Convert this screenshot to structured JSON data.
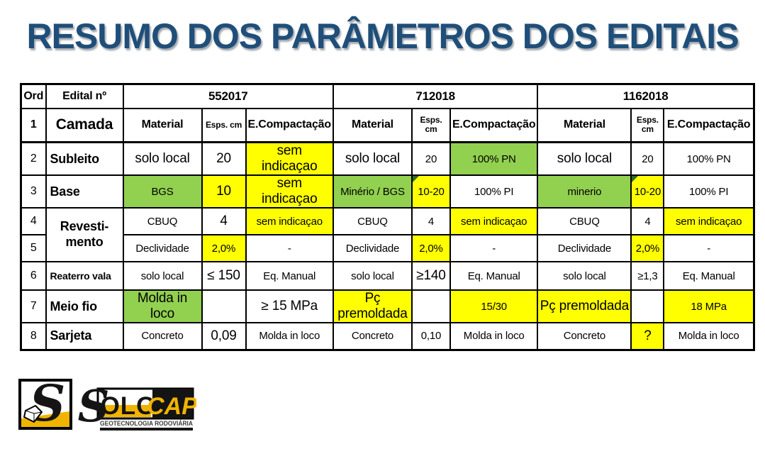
{
  "title": "RESUMO DOS PARÂMETROS DOS EDITAIS",
  "colors": {
    "title_blue": "#1F4E79",
    "highlight_yellow": "#FFFF00",
    "highlight_green": "#92D050",
    "corner_flag_green": "#2D6A2D",
    "logo_gold": "#F0B400"
  },
  "table": {
    "header": {
      "ord": "Ord",
      "edital": "Edital nº",
      "editais": [
        "552017",
        "712018",
        "1162018"
      ]
    },
    "subheader": {
      "num": "1",
      "camada": "Camada",
      "material": "Material",
      "esps": "Esps. cm",
      "compactacao": "E.Compactação"
    },
    "rows": [
      {
        "num": "2",
        "camada": "Subleito",
        "cells": [
          {
            "t": "solo local",
            "lg": true
          },
          {
            "t": "20",
            "lg": true
          },
          {
            "t": "sem indicaçao",
            "bg": "y",
            "lg": true
          },
          {
            "t": "solo local",
            "lg": true
          },
          {
            "t": "20"
          },
          {
            "t": "100% PN",
            "bg": "g"
          },
          {
            "t": "solo local",
            "lg": true
          },
          {
            "t": "20"
          },
          {
            "t": "100% PN"
          }
        ]
      },
      {
        "num": "3",
        "camada": "Base",
        "cells": [
          {
            "t": "BGS",
            "bg": "g"
          },
          {
            "t": "10",
            "bg": "y",
            "lg": true
          },
          {
            "t": "sem indicaçao",
            "bg": "y",
            "lg": true
          },
          {
            "t": "Minério / BGS",
            "bg": "g"
          },
          {
            "t": "10-20",
            "bg": "y",
            "corner": true
          },
          {
            "t": "100% PI"
          },
          {
            "t": "minerio",
            "bg": "g"
          },
          {
            "t": "10-20",
            "bg": "y",
            "corner": true
          },
          {
            "t": "100% PI"
          }
        ]
      },
      {
        "num": "4",
        "camada": "Revesti-\nmento",
        "camada_rowspan": 2,
        "camada_center": true,
        "cells": [
          {
            "t": "CBUQ"
          },
          {
            "t": "4",
            "lg": true
          },
          {
            "t": "sem indicaçao",
            "bg": "y"
          },
          {
            "t": "CBUQ"
          },
          {
            "t": "4"
          },
          {
            "t": "sem indicaçao",
            "bg": "y"
          },
          {
            "t": "CBUQ"
          },
          {
            "t": "4"
          },
          {
            "t": "sem indicaçao",
            "bg": "y"
          }
        ]
      },
      {
        "num": "5",
        "camada": null,
        "cells": [
          {
            "t": "Declividade"
          },
          {
            "t": "2,0%",
            "bg": "y"
          },
          {
            "t": "-"
          },
          {
            "t": "Declividade"
          },
          {
            "t": "2,0%",
            "bg": "y"
          },
          {
            "t": "-"
          },
          {
            "t": "Declividade"
          },
          {
            "t": "2,0%",
            "bg": "y"
          },
          {
            "t": "-"
          }
        ]
      },
      {
        "num": "6",
        "camada": "Reaterro vala",
        "cells": [
          {
            "t": "solo local"
          },
          {
            "t": "≤ 150",
            "lg": true
          },
          {
            "t": "Eq. Manual"
          },
          {
            "t": "solo local"
          },
          {
            "t": "≥140",
            "lg": true
          },
          {
            "t": "Eq. Manual"
          },
          {
            "t": "solo local"
          },
          {
            "t": "≥1,3"
          },
          {
            "t": "Eq. Manual"
          }
        ]
      },
      {
        "num": "7",
        "camada": "Meio fio",
        "cells": [
          {
            "t": "Molda in loco",
            "bg": "g",
            "lg": true
          },
          {
            "t": ""
          },
          {
            "t": "≥ 15 MPa",
            "lg": true
          },
          {
            "t": "Pç premoldada",
            "bg": "y",
            "lg": true
          },
          {
            "t": ""
          },
          {
            "t": "15/30",
            "bg": "y"
          },
          {
            "t": "Pç premoldada",
            "bg": "y",
            "lg": true
          },
          {
            "t": ""
          },
          {
            "t": "18 MPa",
            "bg": "y"
          }
        ]
      },
      {
        "num": "8",
        "camada": "Sarjeta",
        "cells": [
          {
            "t": "Concreto"
          },
          {
            "t": "0,09",
            "lg": true
          },
          {
            "t": "Molda in loco"
          },
          {
            "t": "Concreto"
          },
          {
            "t": "0,10"
          },
          {
            "t": "Molda in loco"
          },
          {
            "t": "Concreto"
          },
          {
            "t": "?",
            "bg": "y",
            "lg": true
          },
          {
            "t": "Molda in loco"
          }
        ]
      }
    ]
  },
  "logo": {
    "s_initial": "S",
    "olo": "OLO",
    "cap": "CAP",
    "tagline": "GEOTECNOLOGIA RODOVIÁRIA"
  }
}
